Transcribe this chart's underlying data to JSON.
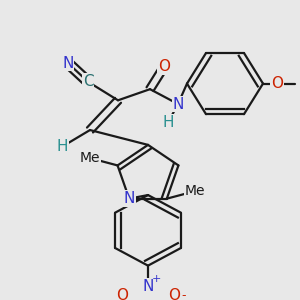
{
  "bg_color": "#e8e8e8",
  "line_color": "#1a1a1a",
  "line_width": 1.6,
  "font_size": 11,
  "colors": {
    "N": "#3333cc",
    "O": "#cc2200",
    "C": "#2a7070",
    "H": "#2a9090",
    "black": "#1a1a1a"
  },
  "figsize": [
    3.0,
    3.0
  ],
  "dpi": 100
}
